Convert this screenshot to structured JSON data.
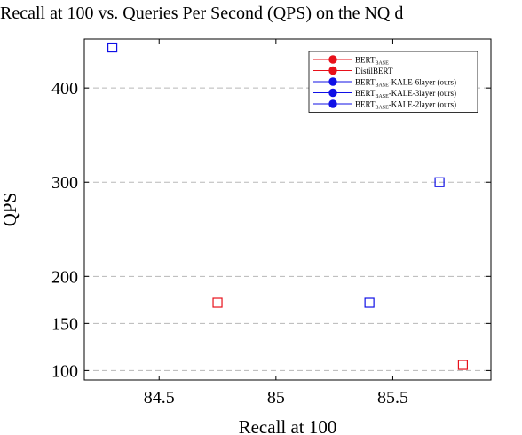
{
  "chart_data": {
    "type": "scatter",
    "title": "Recall at 100 vs. Queries Per Second (QPS) on the NQ d",
    "xlabel": "Recall at 100",
    "ylabel": "QPS",
    "xlim": [
      84.18,
      85.92
    ],
    "ylim": [
      90,
      452
    ],
    "xticks": [
      "84.5",
      "85",
      "85.5"
    ],
    "xtick_values": [
      84.5,
      85,
      85.5
    ],
    "yticks": [
      "100",
      "150",
      "200",
      "300",
      "400"
    ],
    "ytick_values": [
      100,
      150,
      200,
      300,
      400
    ],
    "grid": "horizontal-dashed",
    "legend_position": "top-right",
    "legend": [
      {
        "base": "BERT",
        "sub": "BASE",
        "rest": "",
        "color": "#e8101a"
      },
      {
        "base": "DistilBERT",
        "sub": "",
        "rest": "",
        "color": "#e8101a"
      },
      {
        "base": "BERT",
        "sub": "BASE",
        "rest": "-KALE-6layer (ours)",
        "color": "#1010e6"
      },
      {
        "base": "BERT",
        "sub": "BASE",
        "rest": "-KALE-3layer (ours)",
        "color": "#1010e6"
      },
      {
        "base": "BERT",
        "sub": "BASE",
        "rest": "-KALE-2layer (ours)",
        "color": "#1010e6"
      }
    ],
    "points": [
      {
        "x": 85.8,
        "y": 106,
        "color": "#e8101a"
      },
      {
        "x": 84.75,
        "y": 172,
        "color": "#e8101a"
      },
      {
        "x": 84.3,
        "y": 443,
        "color": "#1010e6"
      },
      {
        "x": 85.7,
        "y": 300,
        "color": "#1010e6"
      },
      {
        "x": 85.4,
        "y": 172,
        "color": "#1010e6"
      }
    ]
  }
}
